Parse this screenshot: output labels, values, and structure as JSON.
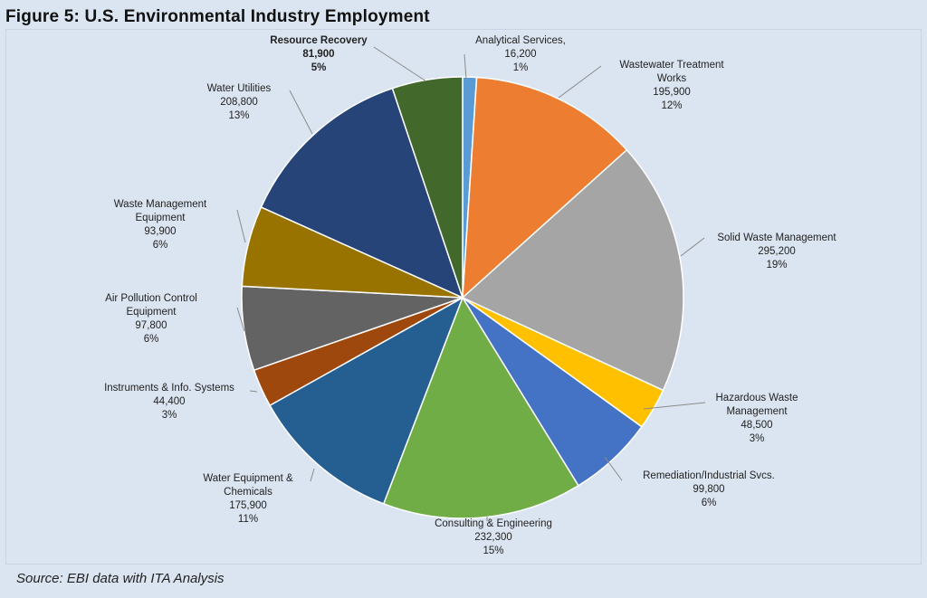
{
  "title": "Figure 5: U.S. Environmental Industry Employment",
  "source": "Source: EBI data with ITA Analysis",
  "chart_data": {
    "type": "pie",
    "start_angle_deg": 90,
    "direction": "clockwise",
    "slices": [
      {
        "name": "Analytical Services,",
        "value": 16200,
        "pct": "1%",
        "value_label": "16,200",
        "color": "#5b9bd5",
        "label_lines": [
          "Analytical Services,",
          "16,200",
          "1%"
        ],
        "bold": false
      },
      {
        "name": "Wastewater Treatment Works",
        "value": 195900,
        "pct": "12%",
        "value_label": "195,900",
        "color": "#ed7d31",
        "label_lines": [
          "Wastewater Treatment",
          "Works",
          "195,900",
          "12%"
        ],
        "bold": false
      },
      {
        "name": "Solid Waste Management",
        "value": 295200,
        "pct": "19%",
        "value_label": "295,200",
        "color": "#a5a5a5",
        "label_lines": [
          "Solid Waste Management",
          "295,200",
          "19%"
        ],
        "bold": false
      },
      {
        "name": "Hazardous Waste Management",
        "value": 48500,
        "pct": "3%",
        "value_label": "48,500",
        "color": "#ffc000",
        "label_lines": [
          "Hazardous Waste",
          "Management",
          "48,500",
          "3%"
        ],
        "bold": false
      },
      {
        "name": "Remediation/Industrial Svcs.",
        "value": 99800,
        "pct": "6%",
        "value_label": "99,800",
        "color": "#4472c4",
        "label_lines": [
          "Remediation/Industrial Svcs.",
          "99,800",
          "6%"
        ],
        "bold": false
      },
      {
        "name": "Consulting & Engineering",
        "value": 232300,
        "pct": "15%",
        "value_label": "232,300",
        "color": "#70ad47",
        "label_lines": [
          "Consulting & Engineering",
          "232,300",
          "15%"
        ],
        "bold": false
      },
      {
        "name": "Water Equipment & Chemicals",
        "value": 175900,
        "pct": "11%",
        "value_label": "175,900",
        "color": "#255e91",
        "label_lines": [
          "Water Equipment &",
          "Chemicals",
          "175,900",
          "11%"
        ],
        "bold": false
      },
      {
        "name": "Instruments & Info. Systems",
        "value": 44400,
        "pct": "3%",
        "value_label": "44,400",
        "color": "#9e480e",
        "label_lines": [
          "Instruments & Info. Systems",
          "44,400",
          "3%"
        ],
        "bold": false
      },
      {
        "name": "Air Pollution Control Equipment",
        "value": 97800,
        "pct": "6%",
        "value_label": "97,800",
        "color": "#636363",
        "label_lines": [
          "Air Pollution Control",
          "Equipment",
          "97,800",
          "6%"
        ],
        "bold": false
      },
      {
        "name": "Waste Management Equipment",
        "value": 93900,
        "pct": "6%",
        "value_label": "93,900",
        "color": "#997300",
        "label_lines": [
          "Waste Management",
          "Equipment",
          "93,900",
          "6%"
        ],
        "bold": false
      },
      {
        "name": "Water Utilities",
        "value": 208800,
        "pct": "13%",
        "value_label": "208,800",
        "color": "#264478",
        "label_lines": [
          "Water Utilities",
          "208,800",
          "13%"
        ],
        "bold": false
      },
      {
        "name": "Resource Recovery",
        "value": 81900,
        "pct": "5%",
        "value_label": "81,900",
        "color": "#43682b",
        "label_lines": [
          "Resource Recovery",
          "81,900",
          "5%"
        ],
        "bold": true
      }
    ]
  }
}
